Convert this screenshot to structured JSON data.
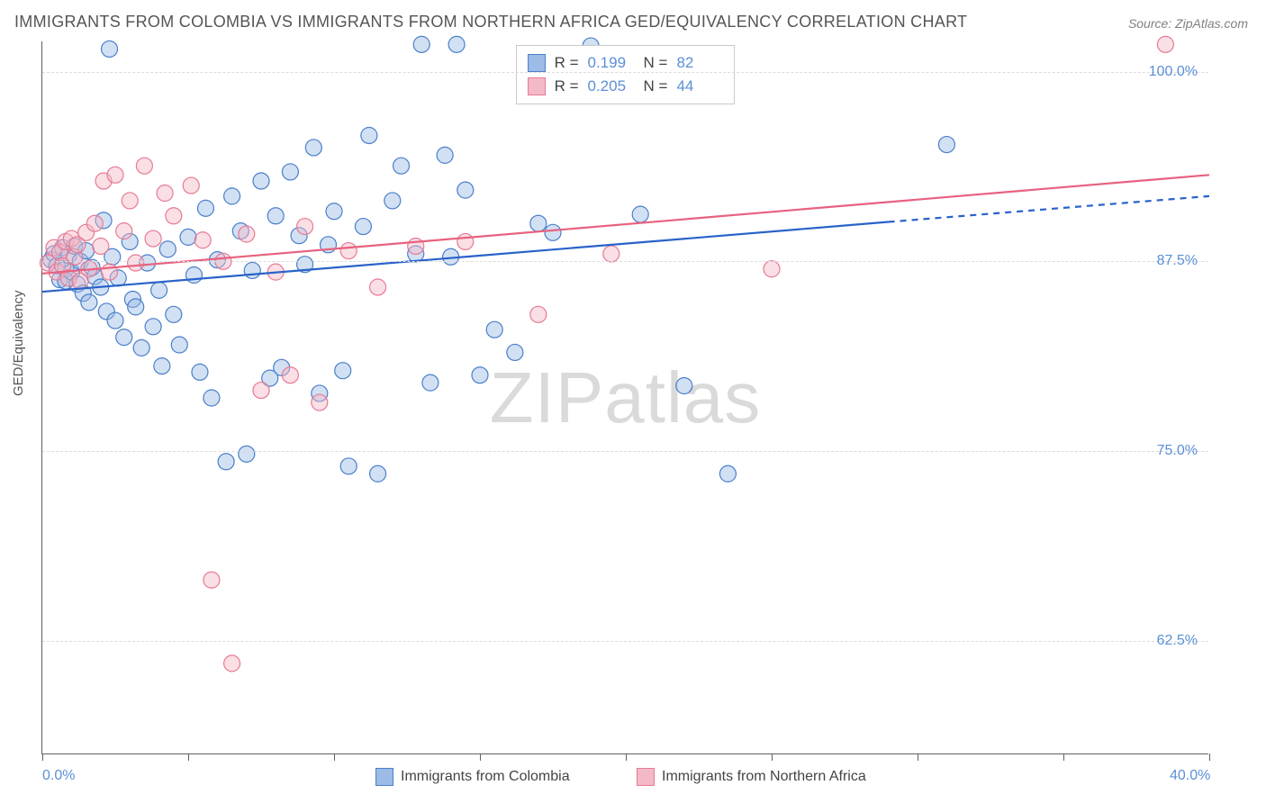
{
  "title": "IMMIGRANTS FROM COLOMBIA VS IMMIGRANTS FROM NORTHERN AFRICA GED/EQUIVALENCY CORRELATION CHART",
  "source": "Source: ZipAtlas.com",
  "y_axis_label": "GED/Equivalency",
  "watermark": "ZIPatlas",
  "chart": {
    "type": "scatter",
    "xlim": [
      0,
      40
    ],
    "ylim": [
      55,
      102
    ],
    "x_ticks": [
      0,
      5,
      10,
      15,
      20,
      25,
      30,
      35,
      40
    ],
    "x_tick_labels_shown": {
      "0": "0.0%",
      "40": "40.0%"
    },
    "y_gridlines": [
      62.5,
      75.0,
      87.5,
      100.0
    ],
    "y_tick_labels": [
      "62.5%",
      "75.0%",
      "87.5%",
      "100.0%"
    ],
    "background_color": "#ffffff",
    "grid_color": "#dcdcdc",
    "axis_color": "#606060",
    "marker_radius": 9,
    "marker_stroke_width": 1.2,
    "marker_fill_opacity": 0.45,
    "line_width": 2.2,
    "series": [
      {
        "name": "Immigrants from Colombia",
        "color_fill": "#9cbbe6",
        "color_stroke": "#4a7fc9",
        "line_color": "#2962c9",
        "R": "0.199",
        "N": "82",
        "trend": {
          "x0": 0,
          "y0": 85.5,
          "x_solid_end": 29,
          "y_solid_end": 90.1,
          "x1": 40,
          "y1": 91.8
        },
        "points": [
          [
            0.3,
            87.6
          ],
          [
            0.4,
            88.0
          ],
          [
            0.5,
            87.2
          ],
          [
            0.6,
            86.3
          ],
          [
            0.7,
            88.4
          ],
          [
            0.8,
            87.0
          ],
          [
            0.8,
            86.2
          ],
          [
            0.9,
            87.9
          ],
          [
            1.0,
            86.8
          ],
          [
            1.1,
            88.5
          ],
          [
            1.2,
            86.0
          ],
          [
            1.3,
            87.5
          ],
          [
            1.4,
            85.4
          ],
          [
            1.5,
            88.2
          ],
          [
            1.6,
            84.8
          ],
          [
            1.7,
            87.1
          ],
          [
            1.8,
            86.5
          ],
          [
            2.0,
            85.8
          ],
          [
            2.1,
            90.2
          ],
          [
            2.2,
            84.2
          ],
          [
            2.3,
            101.5
          ],
          [
            2.4,
            87.8
          ],
          [
            2.5,
            83.6
          ],
          [
            2.6,
            86.4
          ],
          [
            2.8,
            82.5
          ],
          [
            3.0,
            88.8
          ],
          [
            3.1,
            85.0
          ],
          [
            3.2,
            84.5
          ],
          [
            3.4,
            81.8
          ],
          [
            3.6,
            87.4
          ],
          [
            3.8,
            83.2
          ],
          [
            4.0,
            85.6
          ],
          [
            4.1,
            80.6
          ],
          [
            4.3,
            88.3
          ],
          [
            4.5,
            84.0
          ],
          [
            4.7,
            82.0
          ],
          [
            5.0,
            89.1
          ],
          [
            5.2,
            86.6
          ],
          [
            5.4,
            80.2
          ],
          [
            5.6,
            91.0
          ],
          [
            5.8,
            78.5
          ],
          [
            6.0,
            87.6
          ],
          [
            6.3,
            74.3
          ],
          [
            6.5,
            91.8
          ],
          [
            6.8,
            89.5
          ],
          [
            7.0,
            74.8
          ],
          [
            7.2,
            86.9
          ],
          [
            7.5,
            92.8
          ],
          [
            7.8,
            79.8
          ],
          [
            8.0,
            90.5
          ],
          [
            8.2,
            80.5
          ],
          [
            8.5,
            93.4
          ],
          [
            8.8,
            89.2
          ],
          [
            9.0,
            87.3
          ],
          [
            9.3,
            95.0
          ],
          [
            9.5,
            78.8
          ],
          [
            9.8,
            88.6
          ],
          [
            10.0,
            90.8
          ],
          [
            10.3,
            80.3
          ],
          [
            10.5,
            74.0
          ],
          [
            11.0,
            89.8
          ],
          [
            11.2,
            95.8
          ],
          [
            11.5,
            73.5
          ],
          [
            12.0,
            91.5
          ],
          [
            12.3,
            93.8
          ],
          [
            12.8,
            88.0
          ],
          [
            13.0,
            101.8
          ],
          [
            13.3,
            79.5
          ],
          [
            13.8,
            94.5
          ],
          [
            14.0,
            87.8
          ],
          [
            14.2,
            101.8
          ],
          [
            14.5,
            92.2
          ],
          [
            15.0,
            80.0
          ],
          [
            15.5,
            83.0
          ],
          [
            16.2,
            81.5
          ],
          [
            17.0,
            90.0
          ],
          [
            17.5,
            89.4
          ],
          [
            18.8,
            101.7
          ],
          [
            20.5,
            90.6
          ],
          [
            22.0,
            79.3
          ],
          [
            23.5,
            73.5
          ],
          [
            31.0,
            95.2
          ]
        ]
      },
      {
        "name": "Immigrants from Northern Africa",
        "color_fill": "#f4b9c6",
        "color_stroke": "#e77a94",
        "line_color": "#e8617f",
        "R": "0.205",
        "N": "44",
        "trend": {
          "x0": 0,
          "y0": 86.7,
          "x_solid_end": 40,
          "y_solid_end": 93.2,
          "x1": 40,
          "y1": 93.2
        },
        "points": [
          [
            0.2,
            87.4
          ],
          [
            0.4,
            88.4
          ],
          [
            0.5,
            86.8
          ],
          [
            0.6,
            88.1
          ],
          [
            0.7,
            87.2
          ],
          [
            0.8,
            88.8
          ],
          [
            0.9,
            86.4
          ],
          [
            1.0,
            89.0
          ],
          [
            1.1,
            87.8
          ],
          [
            1.2,
            88.6
          ],
          [
            1.3,
            86.2
          ],
          [
            1.5,
            89.4
          ],
          [
            1.6,
            87.0
          ],
          [
            1.8,
            90.0
          ],
          [
            2.0,
            88.5
          ],
          [
            2.1,
            92.8
          ],
          [
            2.3,
            86.8
          ],
          [
            2.5,
            93.2
          ],
          [
            2.8,
            89.5
          ],
          [
            3.0,
            91.5
          ],
          [
            3.2,
            87.4
          ],
          [
            3.5,
            93.8
          ],
          [
            3.8,
            89.0
          ],
          [
            4.2,
            92.0
          ],
          [
            4.5,
            90.5
          ],
          [
            5.1,
            92.5
          ],
          [
            5.5,
            88.9
          ],
          [
            5.8,
            66.5
          ],
          [
            6.2,
            87.5
          ],
          [
            6.5,
            61.0
          ],
          [
            7.0,
            89.3
          ],
          [
            7.5,
            79.0
          ],
          [
            8.0,
            86.8
          ],
          [
            8.5,
            80.0
          ],
          [
            9.0,
            89.8
          ],
          [
            9.5,
            78.2
          ],
          [
            10.5,
            88.2
          ],
          [
            11.5,
            85.8
          ],
          [
            12.8,
            88.5
          ],
          [
            14.5,
            88.8
          ],
          [
            17.0,
            84.0
          ],
          [
            19.5,
            88.0
          ],
          [
            38.5,
            101.8
          ],
          [
            25.0,
            87.0
          ]
        ]
      }
    ]
  },
  "bottom_legend": {
    "series1_label": "Immigrants from Colombia",
    "series2_label": "Immigrants from Northern Africa"
  },
  "top_legend": {
    "r_label": "R =",
    "n_label": "N ="
  }
}
